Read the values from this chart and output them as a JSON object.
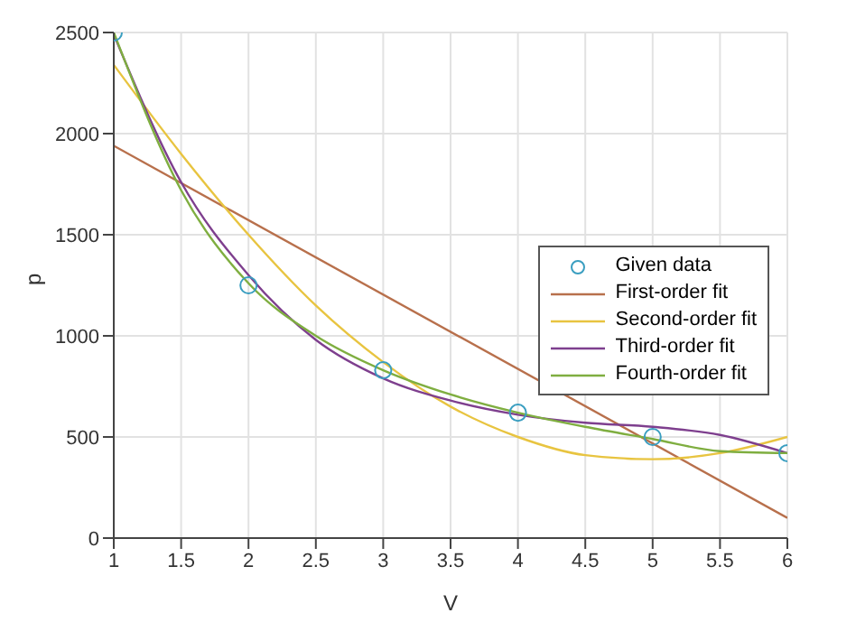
{
  "chart_data": {
    "type": "line",
    "xlabel": "V",
    "ylabel": "p",
    "xlim": [
      1,
      6
    ],
    "xticks": [
      1,
      1.5,
      2,
      2.5,
      3,
      3.5,
      4,
      4.5,
      5,
      5.5,
      6
    ],
    "ylim": [
      0,
      2500
    ],
    "yticks": [
      0,
      500,
      1000,
      1500,
      2000,
      2500
    ],
    "grid": true,
    "legend": "right",
    "series": [
      {
        "name": "Given data",
        "type": "scatter",
        "marker": "circle",
        "color": "#3a9ec0",
        "x": [
          1,
          2,
          3,
          4,
          5,
          6
        ],
        "values": [
          2500,
          1250,
          830,
          620,
          500,
          420
        ]
      },
      {
        "name": "First-order fit",
        "color": "#b8704c",
        "x": [
          1,
          6
        ],
        "values": [
          1940,
          100
        ]
      },
      {
        "name": "Second-order fit",
        "color": "#e8c440",
        "x": [
          1,
          1.5,
          2,
          2.5,
          3,
          3.5,
          4,
          4.5,
          5,
          5.5,
          6
        ],
        "values": [
          2340,
          1900,
          1500,
          1150,
          870,
          650,
          500,
          410,
          390,
          420,
          500
        ]
      },
      {
        "name": "Third-order fit",
        "color": "#7e3f8e",
        "x": [
          1,
          1.5,
          2,
          2.5,
          3,
          3.5,
          4,
          4.5,
          5,
          5.5,
          6
        ],
        "values": [
          2490,
          1760,
          1300,
          980,
          790,
          680,
          610,
          570,
          550,
          510,
          420
        ]
      },
      {
        "name": "Fourth-order fit",
        "color": "#7fae40",
        "x": [
          1,
          1.5,
          2,
          2.5,
          3,
          3.5,
          4,
          4.5,
          5,
          5.5,
          6
        ],
        "values": [
          2500,
          1720,
          1260,
          1000,
          830,
          710,
          620,
          550,
          490,
          430,
          420
        ]
      }
    ]
  }
}
